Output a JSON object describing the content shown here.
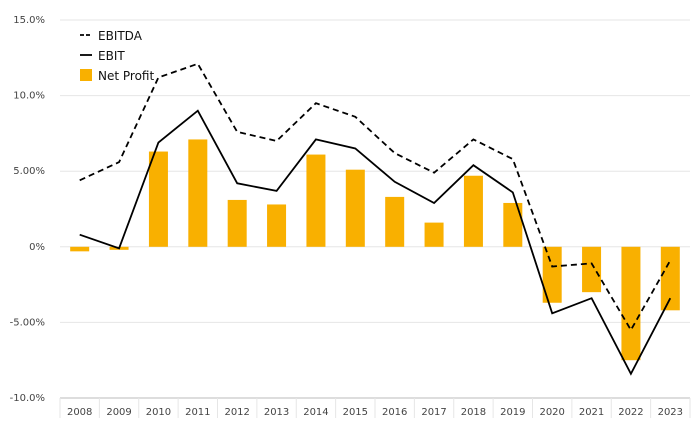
{
  "chart_data": {
    "type": "bar",
    "title": "",
    "xlabel": "",
    "ylabel": "",
    "categories": [
      "2008",
      "2009",
      "2010",
      "2011",
      "2012",
      "2013",
      "2014",
      "2015",
      "2016",
      "2017",
      "2018",
      "2019",
      "2020",
      "2021",
      "2022",
      "2023"
    ],
    "ylim": [
      -10,
      15
    ],
    "yticks": [
      15,
      10,
      5,
      0,
      -5,
      -10
    ],
    "ytick_labels": [
      "15.0%",
      "10.0%",
      "5.00%",
      "0%",
      "-5.00%",
      "-10.0%"
    ],
    "grid": true,
    "legend_position": "top-left",
    "series": [
      {
        "name": "EBITDA",
        "kind": "line",
        "style": "dashed",
        "color": "#000000",
        "values": [
          4.4,
          5.6,
          11.2,
          12.1,
          7.6,
          7.0,
          9.5,
          8.6,
          6.2,
          4.9,
          7.1,
          5.8,
          -1.3,
          -1.1,
          -5.5,
          -0.9
        ]
      },
      {
        "name": "EBIT",
        "kind": "line",
        "style": "solid",
        "color": "#000000",
        "values": [
          0.8,
          -0.1,
          6.9,
          9.0,
          4.2,
          3.7,
          7.1,
          6.5,
          4.3,
          2.9,
          5.4,
          3.6,
          -4.4,
          -3.4,
          -8.4,
          -3.4
        ]
      },
      {
        "name": "Net Profit",
        "kind": "bar",
        "color": "#F9B000",
        "values": [
          -0.3,
          -0.2,
          6.3,
          7.1,
          3.1,
          2.8,
          6.1,
          5.1,
          3.3,
          1.6,
          4.7,
          2.9,
          -3.7,
          -3.0,
          -7.5,
          -4.2
        ]
      }
    ],
    "colors": {
      "bar": "#F9B000",
      "line": "#000000",
      "grid": "#e6e6e6",
      "axis": "#bbbbbb",
      "text": "#444444"
    }
  }
}
